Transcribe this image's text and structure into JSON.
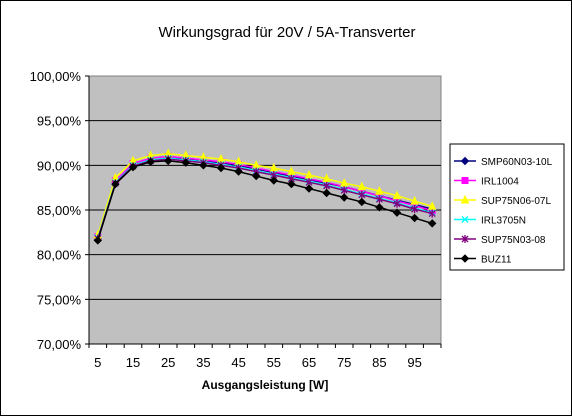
{
  "chart_data": {
    "type": "line",
    "title": "Wirkungsgrad für 20V / 5A-Transverter",
    "xlabel": "Ausgangsleistung [W]",
    "ylabel": "",
    "x": [
      5,
      10,
      15,
      20,
      25,
      30,
      35,
      40,
      45,
      50,
      55,
      60,
      65,
      70,
      75,
      80,
      85,
      90,
      95,
      100
    ],
    "xticks": [
      5,
      15,
      25,
      35,
      45,
      55,
      65,
      75,
      85,
      95
    ],
    "xlim": [
      2.5,
      102.5
    ],
    "ylim": [
      70,
      100
    ],
    "yticks": [
      70,
      75,
      80,
      85,
      90,
      95,
      100
    ],
    "ytick_labels": [
      "70,00%",
      "75,00%",
      "80,00%",
      "85,00%",
      "90,00%",
      "95,00%",
      "100,00%"
    ],
    "grid": true,
    "legend_position": "right",
    "plot_background": "#c0c0c0",
    "series": [
      {
        "name": "SMP60N03-10L",
        "color": "#000080",
        "marker": "diamond",
        "values": [
          81.8,
          88.2,
          90.0,
          90.6,
          90.8,
          90.7,
          90.5,
          90.3,
          90.0,
          89.6,
          89.2,
          88.8,
          88.4,
          88.0,
          87.6,
          87.1,
          86.6,
          86.1,
          85.6,
          85.1
        ]
      },
      {
        "name": "IRL1004",
        "color": "#ff00ff",
        "marker": "square",
        "values": [
          82.0,
          88.3,
          90.2,
          90.8,
          91.0,
          90.8,
          90.6,
          90.4,
          90.1,
          89.7,
          89.3,
          88.9,
          88.5,
          88.1,
          87.6,
          87.1,
          86.6,
          86.0,
          85.5,
          84.9
        ]
      },
      {
        "name": "SUP75N06-07L",
        "color": "#ffff00",
        "marker": "triangle",
        "values": [
          82.2,
          88.6,
          90.5,
          91.1,
          91.3,
          91.1,
          90.9,
          90.7,
          90.4,
          90.0,
          89.7,
          89.3,
          88.9,
          88.5,
          88.0,
          87.6,
          87.1,
          86.6,
          86.0,
          85.4
        ]
      },
      {
        "name": "IRL3705N",
        "color": "#00ffff",
        "marker": "x",
        "values": [
          81.9,
          88.1,
          90.0,
          90.6,
          90.8,
          90.6,
          90.4,
          90.1,
          89.8,
          89.4,
          89.0,
          88.6,
          88.2,
          87.8,
          87.3,
          86.8,
          86.3,
          85.8,
          85.2,
          84.7
        ]
      },
      {
        "name": "SUP75N03-08",
        "color": "#800080",
        "marker": "star",
        "values": [
          81.8,
          88.0,
          89.9,
          90.5,
          90.7,
          90.5,
          90.3,
          90.0,
          89.7,
          89.3,
          88.9,
          88.5,
          88.1,
          87.7,
          87.2,
          86.7,
          86.2,
          85.7,
          85.1,
          84.6
        ]
      },
      {
        "name": "BUZ11",
        "color": "#000000",
        "marker": "diamond",
        "values": [
          81.6,
          87.9,
          89.8,
          90.4,
          90.5,
          90.3,
          90.0,
          89.7,
          89.3,
          88.8,
          88.3,
          87.9,
          87.4,
          86.9,
          86.4,
          85.9,
          85.3,
          84.7,
          84.1,
          83.5
        ]
      }
    ]
  }
}
